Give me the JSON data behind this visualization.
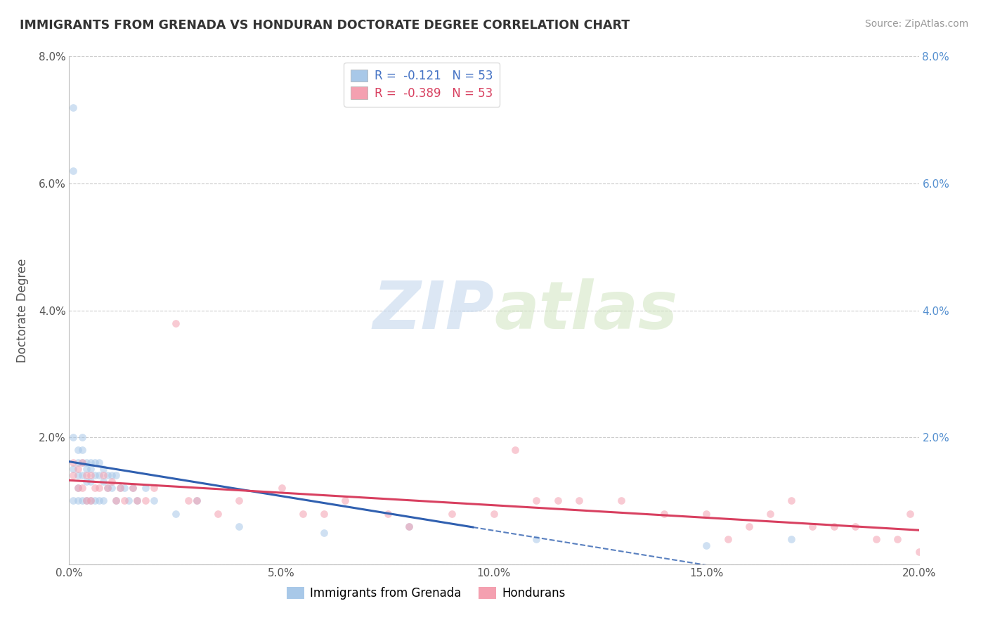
{
  "title": "IMMIGRANTS FROM GRENADA VS HONDURAN DOCTORATE DEGREE CORRELATION CHART",
  "source": "Source: ZipAtlas.com",
  "ylabel": "Doctorate Degree",
  "xlim": [
    0.0,
    0.2
  ],
  "ylim": [
    0.0,
    0.08
  ],
  "xticks": [
    0.0,
    0.05,
    0.1,
    0.15,
    0.2
  ],
  "yticks": [
    0.0,
    0.02,
    0.04,
    0.06,
    0.08
  ],
  "xtick_labels": [
    "0.0%",
    "5.0%",
    "10.0%",
    "15.0%",
    "20.0%"
  ],
  "ytick_labels": [
    "",
    "2.0%",
    "4.0%",
    "6.0%",
    "8.0%"
  ],
  "blue_color": "#a8c8e8",
  "pink_color": "#f4a0b0",
  "blue_line_color": "#3060b0",
  "pink_line_color": "#d84060",
  "blue_legend_color": "#4472c4",
  "pink_legend_color": "#d84060",
  "scatter_alpha": 0.55,
  "scatter_size": 60,
  "blue_x": [
    0.001,
    0.001,
    0.001,
    0.001,
    0.001,
    0.002,
    0.002,
    0.002,
    0.002,
    0.002,
    0.003,
    0.003,
    0.003,
    0.003,
    0.003,
    0.004,
    0.004,
    0.004,
    0.004,
    0.005,
    0.005,
    0.005,
    0.005,
    0.006,
    0.006,
    0.006,
    0.007,
    0.007,
    0.007,
    0.008,
    0.008,
    0.008,
    0.009,
    0.009,
    0.01,
    0.01,
    0.011,
    0.011,
    0.012,
    0.013,
    0.014,
    0.015,
    0.016,
    0.018,
    0.02,
    0.025,
    0.03,
    0.04,
    0.06,
    0.08,
    0.11,
    0.15,
    0.17
  ],
  "blue_y": [
    0.072,
    0.062,
    0.02,
    0.015,
    0.01,
    0.018,
    0.016,
    0.014,
    0.012,
    0.01,
    0.02,
    0.018,
    0.016,
    0.014,
    0.01,
    0.016,
    0.015,
    0.013,
    0.01,
    0.016,
    0.015,
    0.013,
    0.01,
    0.016,
    0.014,
    0.01,
    0.016,
    0.014,
    0.01,
    0.015,
    0.013,
    0.01,
    0.014,
    0.012,
    0.014,
    0.012,
    0.014,
    0.01,
    0.012,
    0.012,
    0.01,
    0.012,
    0.01,
    0.012,
    0.01,
    0.008,
    0.01,
    0.006,
    0.005,
    0.006,
    0.004,
    0.003,
    0.004
  ],
  "pink_x": [
    0.001,
    0.001,
    0.002,
    0.002,
    0.003,
    0.003,
    0.004,
    0.004,
    0.005,
    0.005,
    0.006,
    0.007,
    0.008,
    0.009,
    0.01,
    0.011,
    0.012,
    0.013,
    0.015,
    0.016,
    0.018,
    0.02,
    0.025,
    0.028,
    0.03,
    0.035,
    0.04,
    0.05,
    0.055,
    0.06,
    0.065,
    0.075,
    0.08,
    0.09,
    0.1,
    0.105,
    0.11,
    0.115,
    0.12,
    0.13,
    0.14,
    0.15,
    0.155,
    0.16,
    0.165,
    0.17,
    0.175,
    0.18,
    0.185,
    0.19,
    0.195,
    0.198,
    0.2
  ],
  "pink_y": [
    0.016,
    0.014,
    0.015,
    0.012,
    0.016,
    0.012,
    0.014,
    0.01,
    0.014,
    0.01,
    0.012,
    0.012,
    0.014,
    0.012,
    0.013,
    0.01,
    0.012,
    0.01,
    0.012,
    0.01,
    0.01,
    0.012,
    0.038,
    0.01,
    0.01,
    0.008,
    0.01,
    0.012,
    0.008,
    0.008,
    0.01,
    0.008,
    0.006,
    0.008,
    0.008,
    0.018,
    0.01,
    0.01,
    0.01,
    0.01,
    0.008,
    0.008,
    0.004,
    0.006,
    0.008,
    0.01,
    0.006,
    0.006,
    0.006,
    0.004,
    0.004,
    0.008,
    0.002
  ],
  "watermark_zip": "ZIP",
  "watermark_atlas": "atlas",
  "background_color": "#ffffff",
  "grid_color": "#cccccc",
  "right_tick_color": "#5590d0",
  "legend_R1": "R =  -0.121   N = 53",
  "legend_R2": "R =  -0.389   N = 53"
}
